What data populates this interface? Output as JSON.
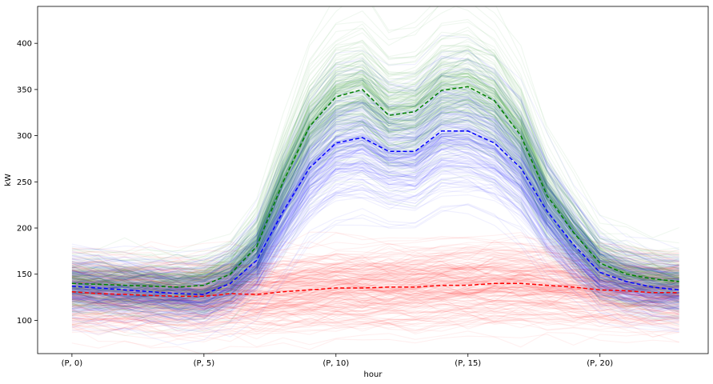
{
  "chart_data": {
    "type": "line",
    "xlabel": "hour",
    "ylabel": "kW",
    "x": [
      0,
      1,
      2,
      3,
      4,
      5,
      6,
      7,
      8,
      9,
      10,
      11,
      12,
      13,
      14,
      15,
      16,
      17,
      18,
      19,
      20,
      21,
      22,
      23
    ],
    "xlim": [
      -1.3,
      24.1
    ],
    "ylim": [
      64,
      440
    ],
    "x_ticks": [
      0,
      5,
      10,
      15,
      20
    ],
    "x_tick_labels": [
      "(P, 0)",
      "(P, 5)",
      "(P, 10)",
      "(P, 15)",
      "(P, 20)"
    ],
    "y_ticks": [
      100,
      150,
      200,
      250,
      300,
      350,
      400
    ],
    "y_tick_labels": [
      "100",
      "150",
      "200",
      "250",
      "300",
      "350",
      "400"
    ],
    "grid": false,
    "legend": null,
    "series": [
      {
        "color": "#008000",
        "style": "dashed-mean",
        "values": [
          140,
          139,
          138,
          137,
          136,
          138,
          150,
          180,
          250,
          310,
          342,
          350,
          322,
          326,
          349,
          353,
          338,
          300,
          235,
          195,
          162,
          150,
          145,
          142
        ]
      },
      {
        "color": "#0000ff",
        "style": "dashed-mean",
        "values": [
          137,
          135,
          133,
          131,
          129,
          128,
          140,
          165,
          218,
          265,
          292,
          298,
          283,
          283,
          305,
          305,
          292,
          265,
          218,
          182,
          152,
          142,
          136,
          133
        ]
      },
      {
        "color": "#ff0000",
        "style": "dashed-mean",
        "values": [
          131,
          129,
          128,
          127,
          126,
          126,
          129,
          128,
          131,
          133,
          135,
          135,
          136,
          136,
          138,
          138,
          140,
          140,
          138,
          136,
          133,
          132,
          130,
          130
        ]
      }
    ],
    "background_profiles": [
      {
        "color": "#008000",
        "count": 200,
        "spread": 0.09,
        "mean_series": 0
      },
      {
        "color": "#0000ff",
        "count": 200,
        "spread": 0.11,
        "mean_series": 1
      },
      {
        "color": "#ff0000",
        "count": 200,
        "spread": 0.14,
        "mean_series": 2
      }
    ]
  }
}
